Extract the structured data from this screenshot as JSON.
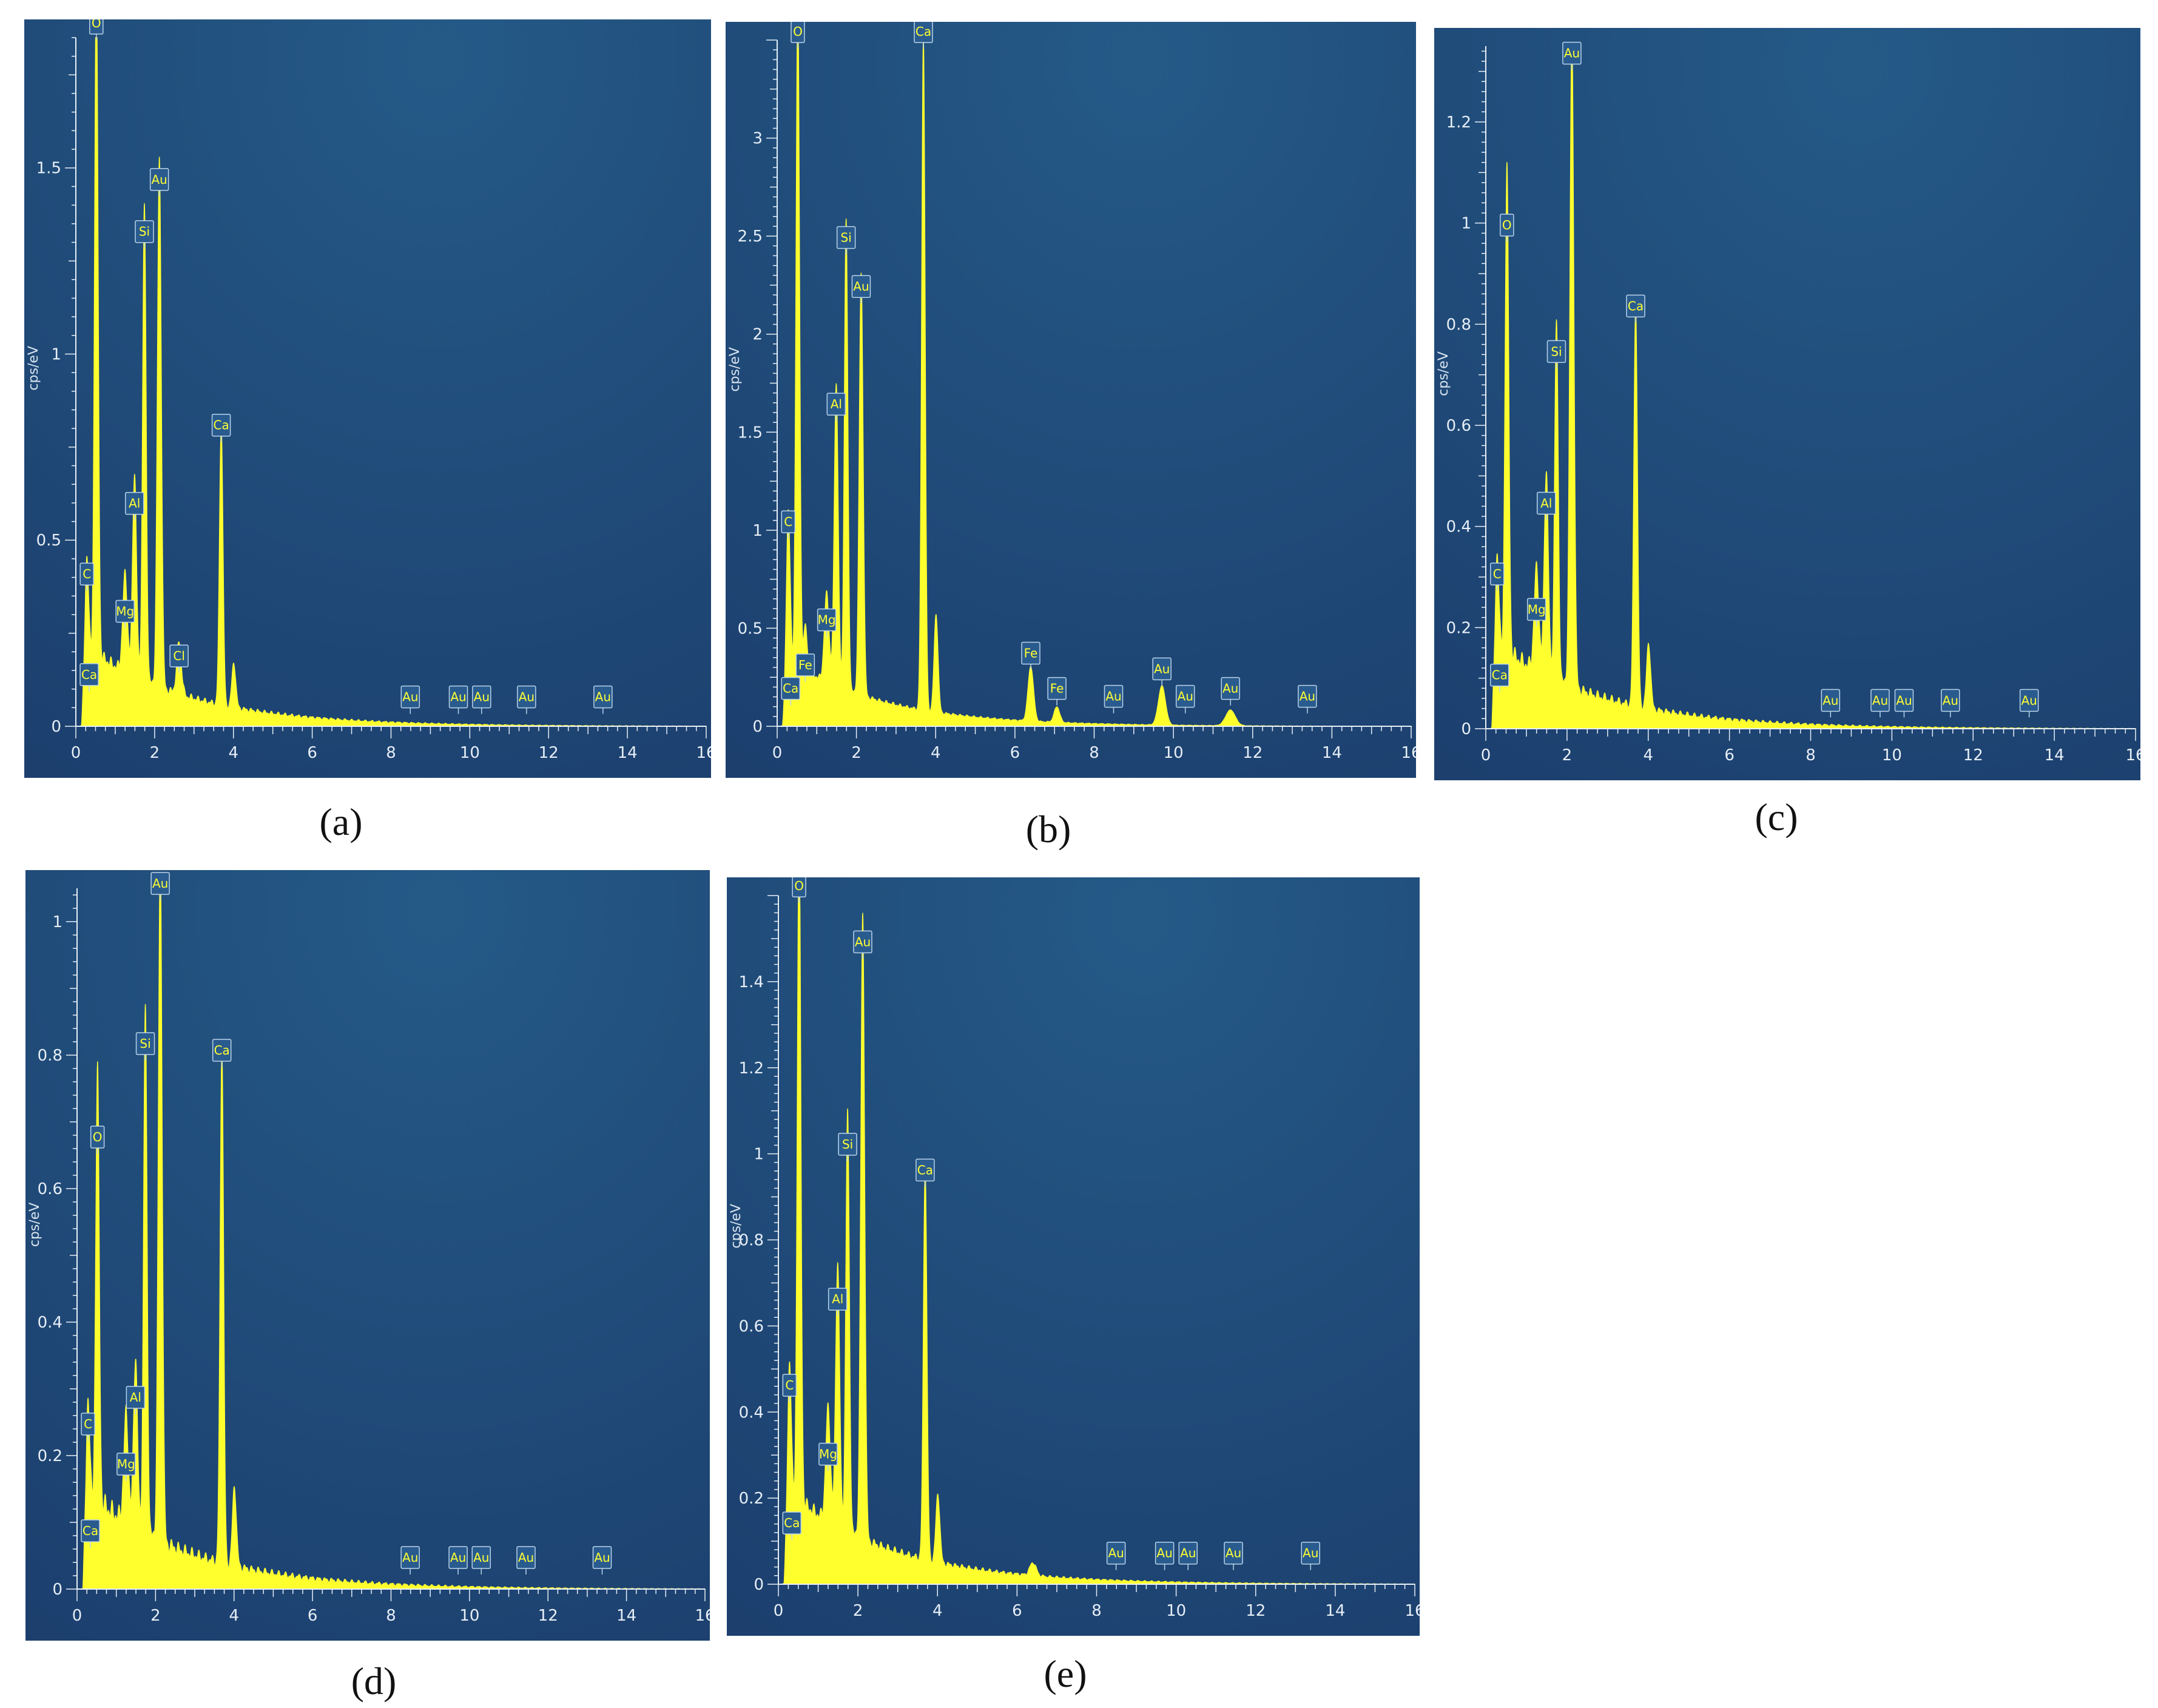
{
  "colors": {
    "background": "#ffffff",
    "plot_top": "#255a87",
    "plot_bottom": "#1c3f6e",
    "spectrum": "#ffff2e",
    "axis": "#e6eef6"
  },
  "chart_data": [
    {
      "id": "a",
      "caption": "(a)",
      "type": "area",
      "xlabel": "",
      "ylabel": "cps/eV",
      "xlim": [
        0,
        16
      ],
      "ylim": [
        0,
        1.85
      ],
      "x_ticks": [
        0,
        2,
        4,
        6,
        8,
        10,
        12,
        14,
        16
      ],
      "y_ticks": [
        0,
        0.5,
        1,
        1.5
      ],
      "peaks": [
        {
          "x": 0.28,
          "y": 0.36,
          "w": 0.05
        },
        {
          "x": 0.52,
          "y": 1.84,
          "w": 0.045
        },
        {
          "x": 1.25,
          "y": 0.26,
          "w": 0.06
        },
        {
          "x": 1.49,
          "y": 0.55,
          "w": 0.05
        },
        {
          "x": 1.74,
          "y": 1.28,
          "w": 0.045
        },
        {
          "x": 2.12,
          "y": 1.42,
          "w": 0.05
        },
        {
          "x": 2.62,
          "y": 0.14,
          "w": 0.06
        },
        {
          "x": 3.69,
          "y": 0.76,
          "w": 0.045
        },
        {
          "x": 4.01,
          "y": 0.12,
          "w": 0.05
        }
      ],
      "background_level": 0.19,
      "background_decay": 2.6,
      "labels": [
        {
          "text": "O",
          "x": 0.52,
          "y": 1.84
        },
        {
          "text": "Au",
          "x": 2.12,
          "y": 1.42
        },
        {
          "text": "Si",
          "x": 1.74,
          "y": 1.28
        },
        {
          "text": "Ca",
          "x": 3.69,
          "y": 0.76
        },
        {
          "text": "Al",
          "x": 1.49,
          "y": 0.55
        },
        {
          "text": "C",
          "x": 0.28,
          "y": 0.36
        },
        {
          "text": "Mg",
          "x": 1.25,
          "y": 0.26
        },
        {
          "text": "Cl",
          "x": 2.62,
          "y": 0.14
        },
        {
          "text": "Ca",
          "x": 0.34,
          "y": 0.09
        },
        {
          "text": "Au",
          "x": 8.49,
          "y": 0.03
        },
        {
          "text": "Au",
          "x": 9.71,
          "y": 0.03
        },
        {
          "text": "Au",
          "x": 10.3,
          "y": 0.03
        },
        {
          "text": "Au",
          "x": 11.44,
          "y": 0.03
        },
        {
          "text": "Au",
          "x": 13.38,
          "y": 0.03
        }
      ]
    },
    {
      "id": "b",
      "caption": "(b)",
      "type": "area",
      "xlabel": "",
      "ylabel": "cps/eV",
      "xlim": [
        0,
        16
      ],
      "ylim": [
        0,
        3.5
      ],
      "x_ticks": [
        0,
        2,
        4,
        6,
        8,
        10,
        12,
        14,
        16
      ],
      "y_ticks": [
        0,
        0.5,
        1,
        1.5,
        2,
        2.5,
        3
      ],
      "peaks": [
        {
          "x": 0.28,
          "y": 0.95,
          "w": 0.05
        },
        {
          "x": 0.52,
          "y": 3.45,
          "w": 0.045
        },
        {
          "x": 0.71,
          "y": 0.22,
          "w": 0.05
        },
        {
          "x": 1.25,
          "y": 0.45,
          "w": 0.06
        },
        {
          "x": 1.49,
          "y": 1.55,
          "w": 0.05
        },
        {
          "x": 1.74,
          "y": 2.4,
          "w": 0.045
        },
        {
          "x": 2.12,
          "y": 2.15,
          "w": 0.05
        },
        {
          "x": 3.69,
          "y": 3.45,
          "w": 0.045
        },
        {
          "x": 4.01,
          "y": 0.5,
          "w": 0.05
        },
        {
          "x": 6.4,
          "y": 0.28,
          "w": 0.07
        },
        {
          "x": 7.06,
          "y": 0.08,
          "w": 0.07
        },
        {
          "x": 9.71,
          "y": 0.2,
          "w": 0.09
        },
        {
          "x": 11.44,
          "y": 0.08,
          "w": 0.12
        }
      ],
      "background_level": 0.3,
      "background_decay": 2.4,
      "labels": [
        {
          "text": "O",
          "x": 0.52,
          "y": 3.45
        },
        {
          "text": "Ca",
          "x": 3.69,
          "y": 3.45
        },
        {
          "text": "Si",
          "x": 1.74,
          "y": 2.4
        },
        {
          "text": "Au",
          "x": 2.12,
          "y": 2.15
        },
        {
          "text": "Al",
          "x": 1.49,
          "y": 1.55
        },
        {
          "text": "C",
          "x": 0.28,
          "y": 0.95
        },
        {
          "text": "Mg",
          "x": 1.25,
          "y": 0.45
        },
        {
          "text": "Fe",
          "x": 0.71,
          "y": 0.22
        },
        {
          "text": "Ca",
          "x": 0.34,
          "y": 0.1
        },
        {
          "text": "Fe",
          "x": 6.4,
          "y": 0.28
        },
        {
          "text": "Fe",
          "x": 7.06,
          "y": 0.1
        },
        {
          "text": "Au",
          "x": 8.49,
          "y": 0.06
        },
        {
          "text": "Au",
          "x": 9.71,
          "y": 0.2
        },
        {
          "text": "Au",
          "x": 10.3,
          "y": 0.06
        },
        {
          "text": "Au",
          "x": 11.44,
          "y": 0.1
        },
        {
          "text": "Au",
          "x": 13.38,
          "y": 0.06
        }
      ]
    },
    {
      "id": "c",
      "caption": "(c)",
      "type": "area",
      "xlabel": "",
      "ylabel": "cps/eV",
      "xlim": [
        0,
        16
      ],
      "ylim": [
        0,
        1.35
      ],
      "x_ticks": [
        0,
        2,
        4,
        6,
        8,
        10,
        12,
        14,
        16
      ],
      "y_ticks": [
        0,
        0.2,
        0.4,
        0.6,
        0.8,
        1,
        1.2
      ],
      "peaks": [
        {
          "x": 0.28,
          "y": 0.27,
          "w": 0.05
        },
        {
          "x": 0.52,
          "y": 0.96,
          "w": 0.045
        },
        {
          "x": 1.25,
          "y": 0.2,
          "w": 0.06
        },
        {
          "x": 1.49,
          "y": 0.41,
          "w": 0.05
        },
        {
          "x": 1.74,
          "y": 0.71,
          "w": 0.045
        },
        {
          "x": 2.12,
          "y": 1.3,
          "w": 0.05
        },
        {
          "x": 3.69,
          "y": 0.8,
          "w": 0.045
        },
        {
          "x": 4.01,
          "y": 0.13,
          "w": 0.05
        }
      ],
      "background_level": 0.15,
      "background_decay": 2.6,
      "labels": [
        {
          "text": "Au",
          "x": 2.12,
          "y": 1.3
        },
        {
          "text": "O",
          "x": 0.52,
          "y": 0.96
        },
        {
          "text": "Ca",
          "x": 3.69,
          "y": 0.8
        },
        {
          "text": "Si",
          "x": 1.74,
          "y": 0.71
        },
        {
          "text": "Al",
          "x": 1.49,
          "y": 0.41
        },
        {
          "text": "C",
          "x": 0.28,
          "y": 0.27
        },
        {
          "text": "Mg",
          "x": 1.25,
          "y": 0.2
        },
        {
          "text": "Ca",
          "x": 0.34,
          "y": 0.07
        },
        {
          "text": "Au",
          "x": 8.49,
          "y": 0.02
        },
        {
          "text": "Au",
          "x": 9.71,
          "y": 0.02
        },
        {
          "text": "Au",
          "x": 10.3,
          "y": 0.02
        },
        {
          "text": "Au",
          "x": 11.44,
          "y": 0.02
        },
        {
          "text": "Au",
          "x": 13.38,
          "y": 0.02
        }
      ]
    },
    {
      "id": "d",
      "caption": "(d)",
      "type": "area",
      "xlabel": "",
      "ylabel": "cps/eV",
      "xlim": [
        0,
        16
      ],
      "ylim": [
        0,
        1.05
      ],
      "x_ticks": [
        0,
        2,
        4,
        6,
        8,
        10,
        12,
        14,
        16
      ],
      "y_ticks": [
        0,
        0.2,
        0.4,
        0.6,
        0.8,
        1
      ],
      "peaks": [
        {
          "x": 0.28,
          "y": 0.22,
          "w": 0.05
        },
        {
          "x": 0.52,
          "y": 0.65,
          "w": 0.045
        },
        {
          "x": 1.25,
          "y": 0.16,
          "w": 0.06
        },
        {
          "x": 1.49,
          "y": 0.26,
          "w": 0.05
        },
        {
          "x": 1.74,
          "y": 0.79,
          "w": 0.045
        },
        {
          "x": 2.12,
          "y": 1.03,
          "w": 0.05
        },
        {
          "x": 3.69,
          "y": 0.78,
          "w": 0.045
        },
        {
          "x": 4.01,
          "y": 0.12,
          "w": 0.05
        }
      ],
      "background_level": 0.13,
      "background_decay": 2.6,
      "labels": [
        {
          "text": "Au",
          "x": 2.12,
          "y": 1.03
        },
        {
          "text": "Si",
          "x": 1.74,
          "y": 0.79
        },
        {
          "text": "Ca",
          "x": 3.69,
          "y": 0.78
        },
        {
          "text": "O",
          "x": 0.52,
          "y": 0.65
        },
        {
          "text": "Al",
          "x": 1.49,
          "y": 0.26
        },
        {
          "text": "C",
          "x": 0.28,
          "y": 0.22
        },
        {
          "text": "Mg",
          "x": 1.25,
          "y": 0.16
        },
        {
          "text": "Ca",
          "x": 0.34,
          "y": 0.06
        },
        {
          "text": "Au",
          "x": 8.49,
          "y": 0.02
        },
        {
          "text": "Au",
          "x": 9.71,
          "y": 0.02
        },
        {
          "text": "Au",
          "x": 10.3,
          "y": 0.02
        },
        {
          "text": "Au",
          "x": 11.44,
          "y": 0.02
        },
        {
          "text": "Au",
          "x": 13.38,
          "y": 0.02
        }
      ]
    },
    {
      "id": "e",
      "caption": "(e)",
      "type": "area",
      "xlabel": "",
      "ylabel": "cps/eV",
      "xlim": [
        0,
        16
      ],
      "ylim": [
        0,
        1.6
      ],
      "x_ticks": [
        0,
        2,
        4,
        6,
        8,
        10,
        12,
        14,
        16
      ],
      "y_ticks": [
        0,
        0.2,
        0.4,
        0.6,
        0.8,
        1,
        1.2,
        1.4
      ],
      "peaks": [
        {
          "x": 0.28,
          "y": 0.42,
          "w": 0.05
        },
        {
          "x": 0.52,
          "y": 1.58,
          "w": 0.045
        },
        {
          "x": 1.25,
          "y": 0.26,
          "w": 0.06
        },
        {
          "x": 1.49,
          "y": 0.62,
          "w": 0.05
        },
        {
          "x": 1.74,
          "y": 0.98,
          "w": 0.045
        },
        {
          "x": 2.12,
          "y": 1.45,
          "w": 0.05
        },
        {
          "x": 3.69,
          "y": 0.92,
          "w": 0.045
        },
        {
          "x": 4.01,
          "y": 0.16,
          "w": 0.05
        },
        {
          "x": 6.4,
          "y": 0.03,
          "w": 0.08
        }
      ],
      "background_level": 0.19,
      "background_decay": 2.6,
      "labels": [
        {
          "text": "O",
          "x": 0.52,
          "y": 1.58
        },
        {
          "text": "Au",
          "x": 2.12,
          "y": 1.45
        },
        {
          "text": "Si",
          "x": 1.74,
          "y": 0.98
        },
        {
          "text": "Ca",
          "x": 3.69,
          "y": 0.92
        },
        {
          "text": "Al",
          "x": 1.49,
          "y": 0.62
        },
        {
          "text": "C",
          "x": 0.28,
          "y": 0.42
        },
        {
          "text": "Mg",
          "x": 1.25,
          "y": 0.26
        },
        {
          "text": "Ca",
          "x": 0.34,
          "y": 0.1
        },
        {
          "text": "Au",
          "x": 8.49,
          "y": 0.03
        },
        {
          "text": "Au",
          "x": 9.71,
          "y": 0.03
        },
        {
          "text": "Au",
          "x": 10.3,
          "y": 0.03
        },
        {
          "text": "Au",
          "x": 11.44,
          "y": 0.03
        },
        {
          "text": "Au",
          "x": 13.38,
          "y": 0.03
        }
      ]
    }
  ]
}
